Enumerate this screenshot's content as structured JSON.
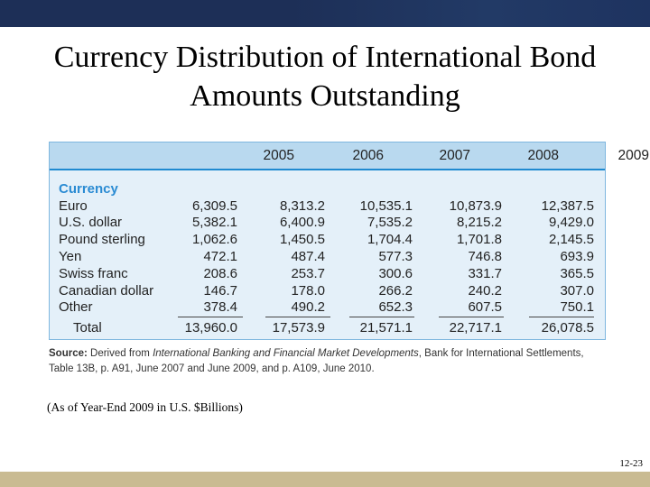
{
  "slide": {
    "title_line1": "Currency Distribution of International Bond",
    "title_line2": "Amounts Outstanding",
    "note": "(As of Year-End 2009 in U.S. $Billions)",
    "page_number": "12-23"
  },
  "table": {
    "category_label": "Currency",
    "years": [
      "2005",
      "2006",
      "2007",
      "2008",
      "2009"
    ],
    "rows": [
      {
        "label": "Euro",
        "values": [
          "6,309.5",
          "8,313.2",
          "10,535.1",
          "10,873.9",
          "12,387.5"
        ]
      },
      {
        "label": "U.S. dollar",
        "values": [
          "5,382.1",
          "6,400.9",
          "7,535.2",
          "8,215.2",
          "9,429.0"
        ]
      },
      {
        "label": "Pound sterling",
        "values": [
          "1,062.6",
          "1,450.5",
          "1,704.4",
          "1,701.8",
          "2,145.5"
        ]
      },
      {
        "label": "Yen",
        "values": [
          "472.1",
          "487.4",
          "577.3",
          "746.8",
          "693.9"
        ]
      },
      {
        "label": "Swiss franc",
        "values": [
          "208.6",
          "253.7",
          "300.6",
          "331.7",
          "365.5"
        ]
      },
      {
        "label": "Canadian dollar",
        "values": [
          "146.7",
          "178.0",
          "266.2",
          "240.2",
          "307.0"
        ]
      },
      {
        "label": "Other",
        "values": [
          "378.4",
          "490.2",
          "652.3",
          "607.5",
          "750.1"
        ]
      }
    ],
    "total": {
      "label": "Total",
      "values": [
        "13,960.0",
        "17,573.9",
        "21,571.1",
        "22,717.1",
        "26,078.5"
      ]
    }
  },
  "source": {
    "label": "Source:",
    "prefix": "Derived from",
    "publication": "International Banking and Financial Market Developments",
    "rest": ", Bank for International Settlements, Table 13B, p. A91, June 2007 and June 2009, and p. A109, June 2010."
  },
  "colors": {
    "top_bar": "#1d2f57",
    "bottom_bar": "#c9bb92",
    "table_bg": "#e4f0f9",
    "table_header_bg": "#b9d9ef",
    "accent_blue": "#2a8bd3"
  }
}
